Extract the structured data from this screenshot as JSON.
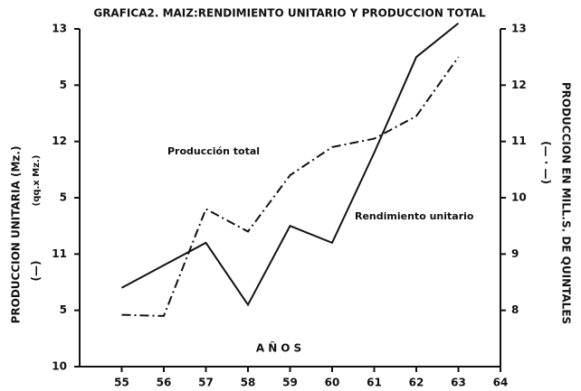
{
  "chart_data": {
    "type": "line",
    "title": "GRAFICA2. MAIZ:RENDIMIENTO UNITARIO Y PRODUCCION TOTAL",
    "ylabel": "PRODUCCION UNITARIA (Mz.)",
    "ylabel_unit": "(qq.x Mz.)",
    "ylabel_key": "(—)",
    "y2label": "PRODUCCION EN MILL.S. DE QUINTALES",
    "y2label_key": "(— · —)",
    "xlabel": "AÑOS",
    "x": [
      55,
      56,
      57,
      58,
      59,
      60,
      61,
      62,
      63
    ],
    "xlim": [
      54,
      64
    ],
    "xticks": [
      55,
      56,
      57,
      58,
      59,
      60,
      61,
      62,
      63,
      64
    ],
    "ylim": [
      10,
      13
    ],
    "yticks": [
      10,
      {
        "value": 10.5,
        "label": "5"
      },
      11,
      {
        "value": 11.5,
        "label": "5"
      },
      12,
      {
        "value": 12.5,
        "label": "5"
      },
      13
    ],
    "y2lim": [
      7,
      13
    ],
    "y2ticks": [
      8,
      9,
      10,
      11,
      12,
      13
    ],
    "series": [
      {
        "name": "Rendimiento unitario",
        "color": "#111111",
        "style": "solid",
        "values": [
          10.7,
          10.9,
          11.1,
          10.55,
          11.25,
          11.1,
          11.9,
          12.75,
          13.05
        ]
      },
      {
        "name": "Producción total",
        "color": "#111111",
        "style": "dashdot",
        "axis": "y2",
        "values": [
          7.92,
          7.9,
          9.8,
          9.4,
          10.4,
          10.9,
          11.05,
          11.45,
          12.5
        ]
      }
    ]
  }
}
